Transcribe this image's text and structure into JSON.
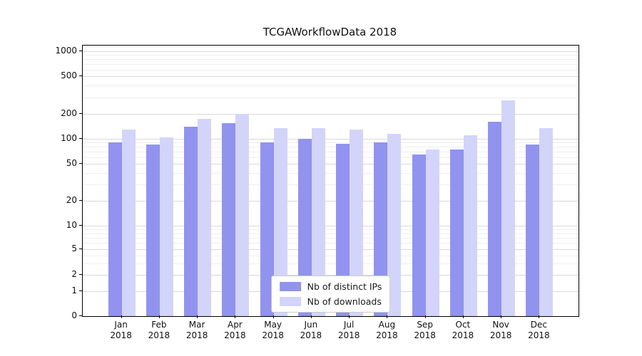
{
  "title": "TCGAWorkflowData 2018",
  "colors": {
    "ips": "#9193ee",
    "downloads": "#d3d4f9",
    "grid_major": "#d9d9d9",
    "grid_minor": "#efefef",
    "axis": "#000000",
    "text": "#111111"
  },
  "chart_data": {
    "type": "bar",
    "title": "TCGAWorkflowData 2018",
    "yscale": "symlog",
    "grid": true,
    "legend_position": "lower center",
    "categories": [
      "Jan",
      "Feb",
      "Mar",
      "Apr",
      "May",
      "Jun",
      "Jul",
      "Aug",
      "Sep",
      "Oct",
      "Nov",
      "Dec"
    ],
    "year": "2018",
    "series": [
      {
        "name": "Nb of distinct IPs",
        "values": [
          90,
          85,
          140,
          155,
          90,
          100,
          88,
          90,
          65,
          75,
          160,
          85
        ]
      },
      {
        "name": "Nb of downloads",
        "values": [
          130,
          105,
          175,
          200,
          135,
          135,
          130,
          115,
          75,
          110,
          280,
          135
        ]
      }
    ],
    "yticks": [
      0,
      1,
      2,
      5,
      10,
      20,
      50,
      100,
      200,
      500,
      1000
    ],
    "yticks_minor": [
      3,
      4,
      6,
      7,
      8,
      9,
      30,
      40,
      60,
      70,
      80,
      90,
      300,
      400,
      600,
      700,
      800,
      900
    ],
    "ylim": [
      0,
      1000
    ],
    "xlabel": "",
    "ylabel": ""
  }
}
